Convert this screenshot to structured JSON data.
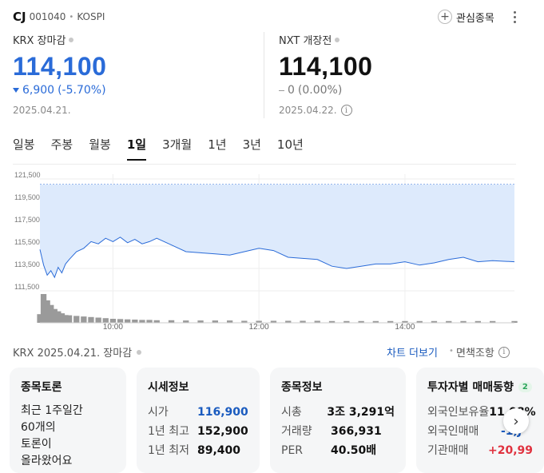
{
  "header": {
    "name": "CJ",
    "code": "001040",
    "market": "KOSPI",
    "favorite_label": "관심종목"
  },
  "krx": {
    "session": "KRX 장마감",
    "price": "114,100",
    "change": "6,900",
    "change_pct": "(-5.70%)",
    "date": "2025.04.21."
  },
  "nxt": {
    "session": "NXT 개장전",
    "price": "114,100",
    "change": "0",
    "change_pct": "(0.00%)",
    "date": "2025.04.22."
  },
  "tabs": [
    {
      "label": "일봉"
    },
    {
      "label": "주봉"
    },
    {
      "label": "월봉"
    },
    {
      "label": "1일",
      "active": true
    },
    {
      "label": "3개월"
    },
    {
      "label": "1년"
    },
    {
      "label": "3년"
    },
    {
      "label": "10년"
    }
  ],
  "chart_data": {
    "type": "area",
    "y_ticks": [
      "121,500",
      "119,500",
      "117,500",
      "115,500",
      "113,500",
      "111,500"
    ],
    "x_ticks": [
      "10:00",
      "12:00",
      "14:00"
    ],
    "ylim": [
      111500,
      121500
    ],
    "xlim": [
      9.0,
      15.5
    ],
    "reference_line": 121000,
    "x": [
      9.0,
      9.05,
      9.1,
      9.15,
      9.2,
      9.25,
      9.3,
      9.35,
      9.4,
      9.5,
      9.6,
      9.7,
      9.8,
      9.9,
      10.0,
      10.1,
      10.2,
      10.3,
      10.4,
      10.5,
      10.6,
      10.8,
      11.0,
      11.2,
      11.4,
      11.6,
      11.8,
      12.0,
      12.2,
      12.4,
      12.6,
      12.8,
      13.0,
      13.2,
      13.4,
      13.6,
      13.8,
      14.0,
      14.2,
      14.4,
      14.6,
      14.8,
      15.0,
      15.2,
      15.5
    ],
    "y": [
      115200,
      113800,
      112900,
      113300,
      112700,
      113600,
      113100,
      113900,
      114300,
      115000,
      115300,
      115900,
      115700,
      116200,
      115900,
      116300,
      115800,
      116100,
      115700,
      115900,
      116200,
      115600,
      115000,
      114900,
      114800,
      114700,
      115000,
      115300,
      115100,
      114500,
      114400,
      114300,
      113700,
      113500,
      113700,
      113900,
      113900,
      114100,
      113800,
      114000,
      114300,
      114500,
      114100,
      114200,
      114100
    ],
    "volume": [
      30,
      100,
      78,
      62,
      48,
      40,
      33,
      27,
      26,
      24,
      22,
      20,
      18,
      16,
      14,
      13,
      12,
      11,
      10,
      10,
      9,
      9,
      8,
      8,
      8,
      8,
      7,
      7,
      7,
      7,
      7,
      7,
      6,
      6,
      6,
      6,
      6,
      6,
      6,
      6,
      6,
      6,
      6,
      6,
      6
    ]
  },
  "footer": {
    "source": "KRX  2025.04.21. 장마감",
    "chart_more": "차트 더보기",
    "disclaimer": "면책조항"
  },
  "cards": {
    "talk": {
      "title": "종목토론",
      "lines": [
        "최근 1주일간",
        "60개의",
        "토론이",
        "올라왔어요"
      ]
    },
    "quote": {
      "title": "시세정보",
      "rows": [
        {
          "label": "시가",
          "value": "116,900"
        },
        {
          "label": "1년 최고",
          "value": "152,900"
        },
        {
          "label": "1년 최저",
          "value": "89,400"
        }
      ]
    },
    "info": {
      "title": "종목정보",
      "rows": [
        {
          "label": "시총",
          "value": "3조 3,291억"
        },
        {
          "label": "거래량",
          "value": "366,931"
        },
        {
          "label": "PER",
          "value": "40.50배"
        }
      ]
    },
    "investor": {
      "title": "투자자별 매매동향",
      "badge": "2",
      "rows": [
        {
          "label": "외국인보유율",
          "value": "11.08%"
        },
        {
          "label": "외국인매매",
          "value": "-1,J"
        },
        {
          "label": "기관매매",
          "value": "+20,99"
        }
      ]
    }
  }
}
